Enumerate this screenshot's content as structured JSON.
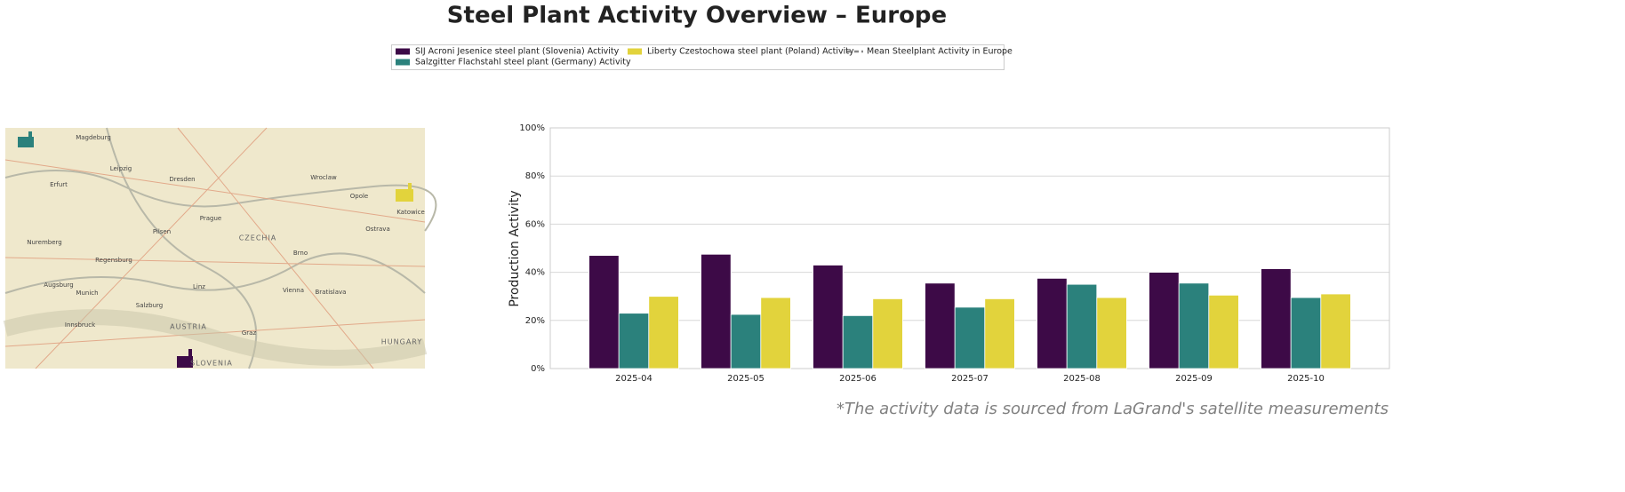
{
  "chart_data": {
    "type": "bar",
    "title": "Steel Plant Activity Overview – Europe",
    "y_label": "Production Activity",
    "footnote": "*The activity data is sourced from LaGrand's satellite measurements",
    "categories": [
      "2025-04",
      "2025-05",
      "2025-06",
      "2025-07",
      "2025-08",
      "2025-09",
      "2025-10"
    ],
    "series": [
      {
        "name": "SIJ Acroni Jesenice steel plant (Slovenia) Activity",
        "color": "#3d0a47",
        "values": [
          47,
          47.5,
          43,
          35.5,
          37.5,
          40,
          41.5
        ]
      },
      {
        "name": "Salzgitter Flachstahl steel plant (Germany) Activity",
        "color": "#2b817c",
        "values": [
          23,
          22.5,
          22,
          25.5,
          35,
          35.5,
          29.5
        ]
      },
      {
        "name": "Liberty Czestochowa steel plant (Poland) Activity",
        "color": "#e2d33c",
        "values": [
          30,
          29.5,
          29,
          29,
          29.5,
          30.5,
          31
        ]
      },
      {
        "name": "Mean Steelplant Activity in Europe",
        "color": "#888888",
        "linestyle": "dashed",
        "values": [
          null,
          null,
          null,
          null,
          null,
          null,
          null
        ]
      }
    ],
    "ylim": [
      0,
      100
    ],
    "yticks": [
      {
        "value": 0,
        "label": "0%"
      },
      {
        "value": 20,
        "label": "20%"
      },
      {
        "value": 40,
        "label": "40%"
      },
      {
        "value": 60,
        "label": "60%"
      },
      {
        "value": 80,
        "label": "80%"
      },
      {
        "value": 100,
        "label": "100%"
      }
    ],
    "grid": true,
    "legend": "top"
  },
  "map_labels": [
    "CZECHIA",
    "AUSTRIA",
    "HUNGARY",
    "SLOVENIA",
    "Prague",
    "Vienna",
    "Munich",
    "Bratislava",
    "Leipzig",
    "Dresden",
    "Wroclaw",
    "Brno",
    "Linz",
    "Graz",
    "Nuremberg",
    "Regensburg",
    "Salzburg",
    "Katowice",
    "Ostrava",
    "Augsburg",
    "Magdeburg",
    "Erfurt",
    "Pilsen",
    "Opole",
    "Innsbruck"
  ]
}
